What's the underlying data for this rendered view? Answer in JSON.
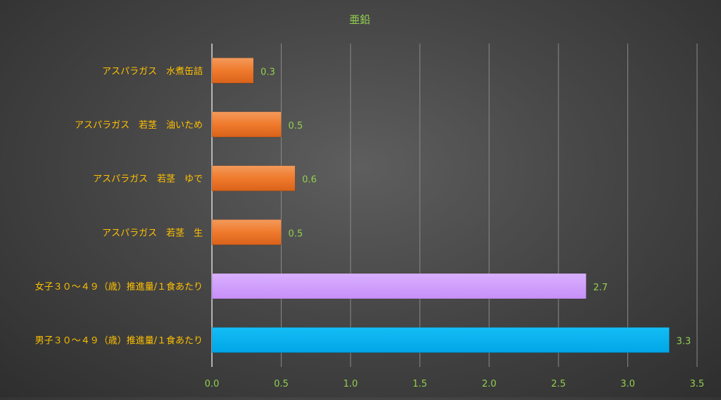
{
  "chart_data": {
    "type": "bar",
    "orientation": "horizontal",
    "title": "亜鉛",
    "xlim": [
      0,
      3.5
    ],
    "xticks": [
      "0.0",
      "0.5",
      "1.0",
      "1.5",
      "2.0",
      "2.5",
      "3.0",
      "3.5"
    ],
    "xtick_values": [
      0,
      0.5,
      1.0,
      1.5,
      2.0,
      2.5,
      3.0,
      3.5
    ],
    "grid": true,
    "legend": "none",
    "categories": [
      "アスパラガス　水煮缶詰",
      "アスパラガス　若茎　油いため",
      "アスパラガス　若茎　ゆで",
      "アスパラガス　若茎　生",
      "女子３０～４９（歳）推進量/１食あたり",
      "男子３０～４９（歳）推進量/１食あたり"
    ],
    "values": [
      0.3,
      0.5,
      0.6,
      0.5,
      2.7,
      3.3
    ],
    "data_labels": [
      "0.3",
      "0.5",
      "0.6",
      "0.5",
      "2.7",
      "3.3"
    ],
    "bar_colors": [
      "#f07a2a",
      "#f07a2a",
      "#f07a2a",
      "#f07a2a",
      "#cc99ff",
      "#00b0f0"
    ],
    "colors": {
      "title": "#92d050",
      "category_label": "#ffc000",
      "tick_label": "#92d050",
      "data_label": "#92d050",
      "gridline": "#8a8a8a",
      "axis": "#d9d9d9"
    }
  }
}
